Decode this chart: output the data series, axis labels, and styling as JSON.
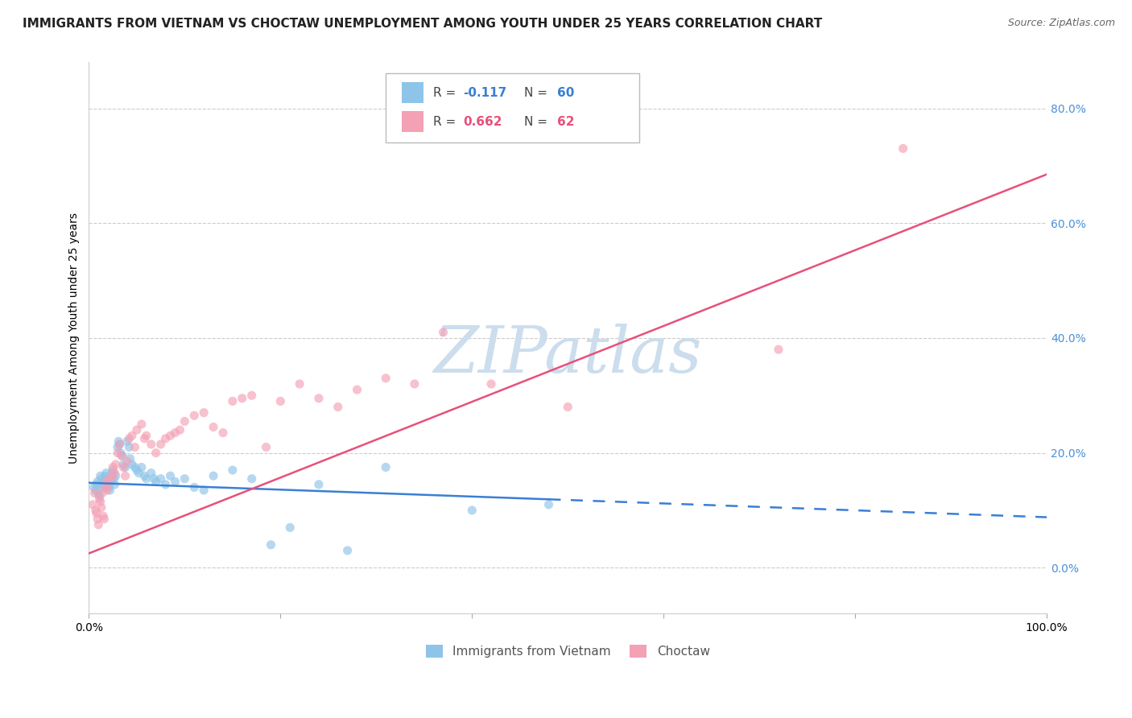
{
  "title": "IMMIGRANTS FROM VIETNAM VS CHOCTAW UNEMPLOYMENT AMONG YOUTH UNDER 25 YEARS CORRELATION CHART",
  "source": "Source: ZipAtlas.com",
  "ylabel": "Unemployment Among Youth under 25 years",
  "legend_label1": "Immigrants from Vietnam",
  "legend_label2": "Choctaw",
  "R1": -0.117,
  "N1": 60,
  "R2": 0.662,
  "N2": 62,
  "color_blue": "#8ec4e8",
  "color_pink": "#f4a0b5",
  "color_blue_line": "#3a7fd5",
  "color_pink_line": "#e8507a",
  "background": "#ffffff",
  "grid_color": "#cccccc",
  "yaxis_color": "#4a90d9",
  "xlim": [
    0.0,
    1.0
  ],
  "ylim": [
    -0.08,
    0.88
  ],
  "yticks": [
    0.0,
    0.2,
    0.4,
    0.6,
    0.8
  ],
  "ytick_labels": [
    "0.0%",
    "20.0%",
    "40.0%",
    "60.0%",
    "80.0%"
  ],
  "xticks": [
    0.0,
    0.2,
    0.4,
    0.6,
    0.8,
    1.0
  ],
  "vietnam_x": [
    0.005,
    0.007,
    0.008,
    0.009,
    0.01,
    0.011,
    0.012,
    0.013,
    0.014,
    0.015,
    0.016,
    0.017,
    0.018,
    0.019,
    0.02,
    0.021,
    0.022,
    0.023,
    0.024,
    0.025,
    0.026,
    0.027,
    0.028,
    0.03,
    0.031,
    0.032,
    0.033,
    0.035,
    0.036,
    0.038,
    0.04,
    0.042,
    0.043,
    0.045,
    0.048,
    0.05,
    0.052,
    0.055,
    0.058,
    0.06,
    0.065,
    0.068,
    0.07,
    0.075,
    0.08,
    0.085,
    0.09,
    0.1,
    0.11,
    0.12,
    0.13,
    0.15,
    0.17,
    0.19,
    0.21,
    0.24,
    0.27,
    0.31,
    0.4,
    0.48
  ],
  "vietnam_y": [
    0.14,
    0.135,
    0.145,
    0.15,
    0.13,
    0.125,
    0.16,
    0.155,
    0.145,
    0.14,
    0.15,
    0.16,
    0.165,
    0.155,
    0.145,
    0.14,
    0.135,
    0.15,
    0.165,
    0.17,
    0.155,
    0.145,
    0.16,
    0.21,
    0.22,
    0.215,
    0.2,
    0.195,
    0.18,
    0.175,
    0.22,
    0.21,
    0.19,
    0.18,
    0.175,
    0.17,
    0.165,
    0.175,
    0.16,
    0.155,
    0.165,
    0.155,
    0.15,
    0.155,
    0.145,
    0.16,
    0.15,
    0.155,
    0.14,
    0.135,
    0.16,
    0.17,
    0.155,
    0.04,
    0.07,
    0.145,
    0.03,
    0.175,
    0.1,
    0.11
  ],
  "choctaw_x": [
    0.004,
    0.006,
    0.007,
    0.008,
    0.009,
    0.01,
    0.011,
    0.012,
    0.013,
    0.014,
    0.015,
    0.016,
    0.017,
    0.018,
    0.019,
    0.02,
    0.022,
    0.024,
    0.025,
    0.027,
    0.028,
    0.03,
    0.032,
    0.034,
    0.036,
    0.038,
    0.04,
    0.042,
    0.045,
    0.048,
    0.05,
    0.055,
    0.058,
    0.06,
    0.065,
    0.07,
    0.075,
    0.08,
    0.085,
    0.09,
    0.095,
    0.1,
    0.11,
    0.12,
    0.13,
    0.14,
    0.15,
    0.16,
    0.17,
    0.185,
    0.2,
    0.22,
    0.24,
    0.26,
    0.28,
    0.31,
    0.34,
    0.37,
    0.42,
    0.5,
    0.72,
    0.85
  ],
  "choctaw_y": [
    0.11,
    0.13,
    0.1,
    0.095,
    0.085,
    0.075,
    0.12,
    0.115,
    0.105,
    0.13,
    0.09,
    0.085,
    0.14,
    0.15,
    0.135,
    0.145,
    0.155,
    0.16,
    0.175,
    0.165,
    0.18,
    0.2,
    0.215,
    0.195,
    0.175,
    0.16,
    0.185,
    0.225,
    0.23,
    0.21,
    0.24,
    0.25,
    0.225,
    0.23,
    0.215,
    0.2,
    0.215,
    0.225,
    0.23,
    0.235,
    0.24,
    0.255,
    0.265,
    0.27,
    0.245,
    0.235,
    0.29,
    0.295,
    0.3,
    0.21,
    0.29,
    0.32,
    0.295,
    0.28,
    0.31,
    0.33,
    0.32,
    0.41,
    0.32,
    0.28,
    0.38,
    0.73
  ],
  "vietnam_line_x0": 0.0,
  "vietnam_line_x1": 1.0,
  "vietnam_line_y0": 0.148,
  "vietnam_line_y1": 0.088,
  "choctaw_line_x0": 0.0,
  "choctaw_line_x1": 1.0,
  "choctaw_line_y0": 0.025,
  "choctaw_line_y1": 0.685,
  "watermark": "ZIPatlas",
  "watermark_color": "#ccdded",
  "title_fontsize": 11,
  "axis_label_fontsize": 10,
  "tick_fontsize": 10,
  "legend_fontsize": 11,
  "scatter_size": 65,
  "scatter_alpha": 0.65
}
